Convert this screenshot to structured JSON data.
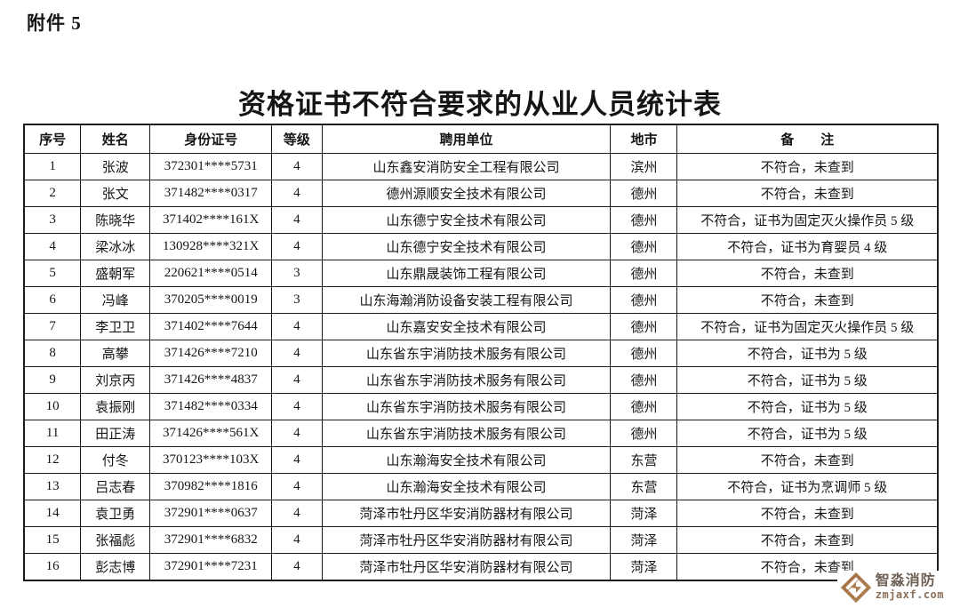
{
  "page": {
    "attachment_label": "附件 5",
    "title": "资格证书不符合要求的从业人员统计表"
  },
  "table": {
    "headers": [
      "序号",
      "姓名",
      "身份证号",
      "等级",
      "聘用单位",
      "地市",
      "备　　注"
    ],
    "col_keys": [
      "serial",
      "name",
      "id-number",
      "level",
      "employer",
      "city",
      "remark"
    ],
    "rows": [
      [
        "1",
        "张波",
        "372301****5731",
        "4",
        "山东鑫安消防安全工程有限公司",
        "滨州",
        "不符合，未查到"
      ],
      [
        "2",
        "张文",
        "371482****0317",
        "4",
        "德州源顺安全技术有限公司",
        "德州",
        "不符合，未查到"
      ],
      [
        "3",
        "陈晓华",
        "371402****161X",
        "4",
        "山东德宁安全技术有限公司",
        "德州",
        "不符合，证书为固定灭火操作员 5 级"
      ],
      [
        "4",
        "梁冰冰",
        "130928****321X",
        "4",
        "山东德宁安全技术有限公司",
        "德州",
        "不符合，证书为育婴员 4 级"
      ],
      [
        "5",
        "盛朝军",
        "220621****0514",
        "3",
        "山东鼎晟装饰工程有限公司",
        "德州",
        "不符合，未查到"
      ],
      [
        "6",
        "冯峰",
        "370205****0019",
        "3",
        "山东海瀚消防设备安装工程有限公司",
        "德州",
        "不符合，未查到"
      ],
      [
        "7",
        "李卫卫",
        "371402****7644",
        "4",
        "山东嘉安安全技术有限公司",
        "德州",
        "不符合，证书为固定灭火操作员 5 级"
      ],
      [
        "8",
        "高攀",
        "371426****7210",
        "4",
        "山东省东宇消防技术服务有限公司",
        "德州",
        "不符合，证书为 5 级"
      ],
      [
        "9",
        "刘京丙",
        "371426****4837",
        "4",
        "山东省东宇消防技术服务有限公司",
        "德州",
        "不符合，证书为 5 级"
      ],
      [
        "10",
        "袁振刚",
        "371482****0334",
        "4",
        "山东省东宇消防技术服务有限公司",
        "德州",
        "不符合，证书为 5 级"
      ],
      [
        "11",
        "田正涛",
        "371426****561X",
        "4",
        "山东省东宇消防技术服务有限公司",
        "德州",
        "不符合，证书为 5 级"
      ],
      [
        "12",
        "付冬",
        "370123****103X",
        "4",
        "山东瀚海安全技术有限公司",
        "东营",
        "不符合，未查到"
      ],
      [
        "13",
        "吕志春",
        "370982****1816",
        "4",
        "山东瀚海安全技术有限公司",
        "东营",
        "不符合，证书为烹调师 5 级"
      ],
      [
        "14",
        "袁卫勇",
        "372901****0637",
        "4",
        "菏泽市牡丹区华安消防器材有限公司",
        "菏泽",
        "不符合，未查到"
      ],
      [
        "15",
        "张福彪",
        "372901****6832",
        "4",
        "菏泽市牡丹区华安消防器材有限公司",
        "菏泽",
        "不符合，未查到"
      ],
      [
        "16",
        "彭志博",
        "372901****7231",
        "4",
        "菏泽市牡丹区华安消防器材有限公司",
        "菏泽",
        "不符合，未查到"
      ]
    ]
  },
  "watermark": {
    "brand": "智淼消防",
    "site": "zmjaxf.com",
    "logo_color": "#ad7c4e",
    "logo_color_dark": "#96643a",
    "brand_text_color": "#6e6054",
    "site_text_color": "#8a6e55"
  }
}
